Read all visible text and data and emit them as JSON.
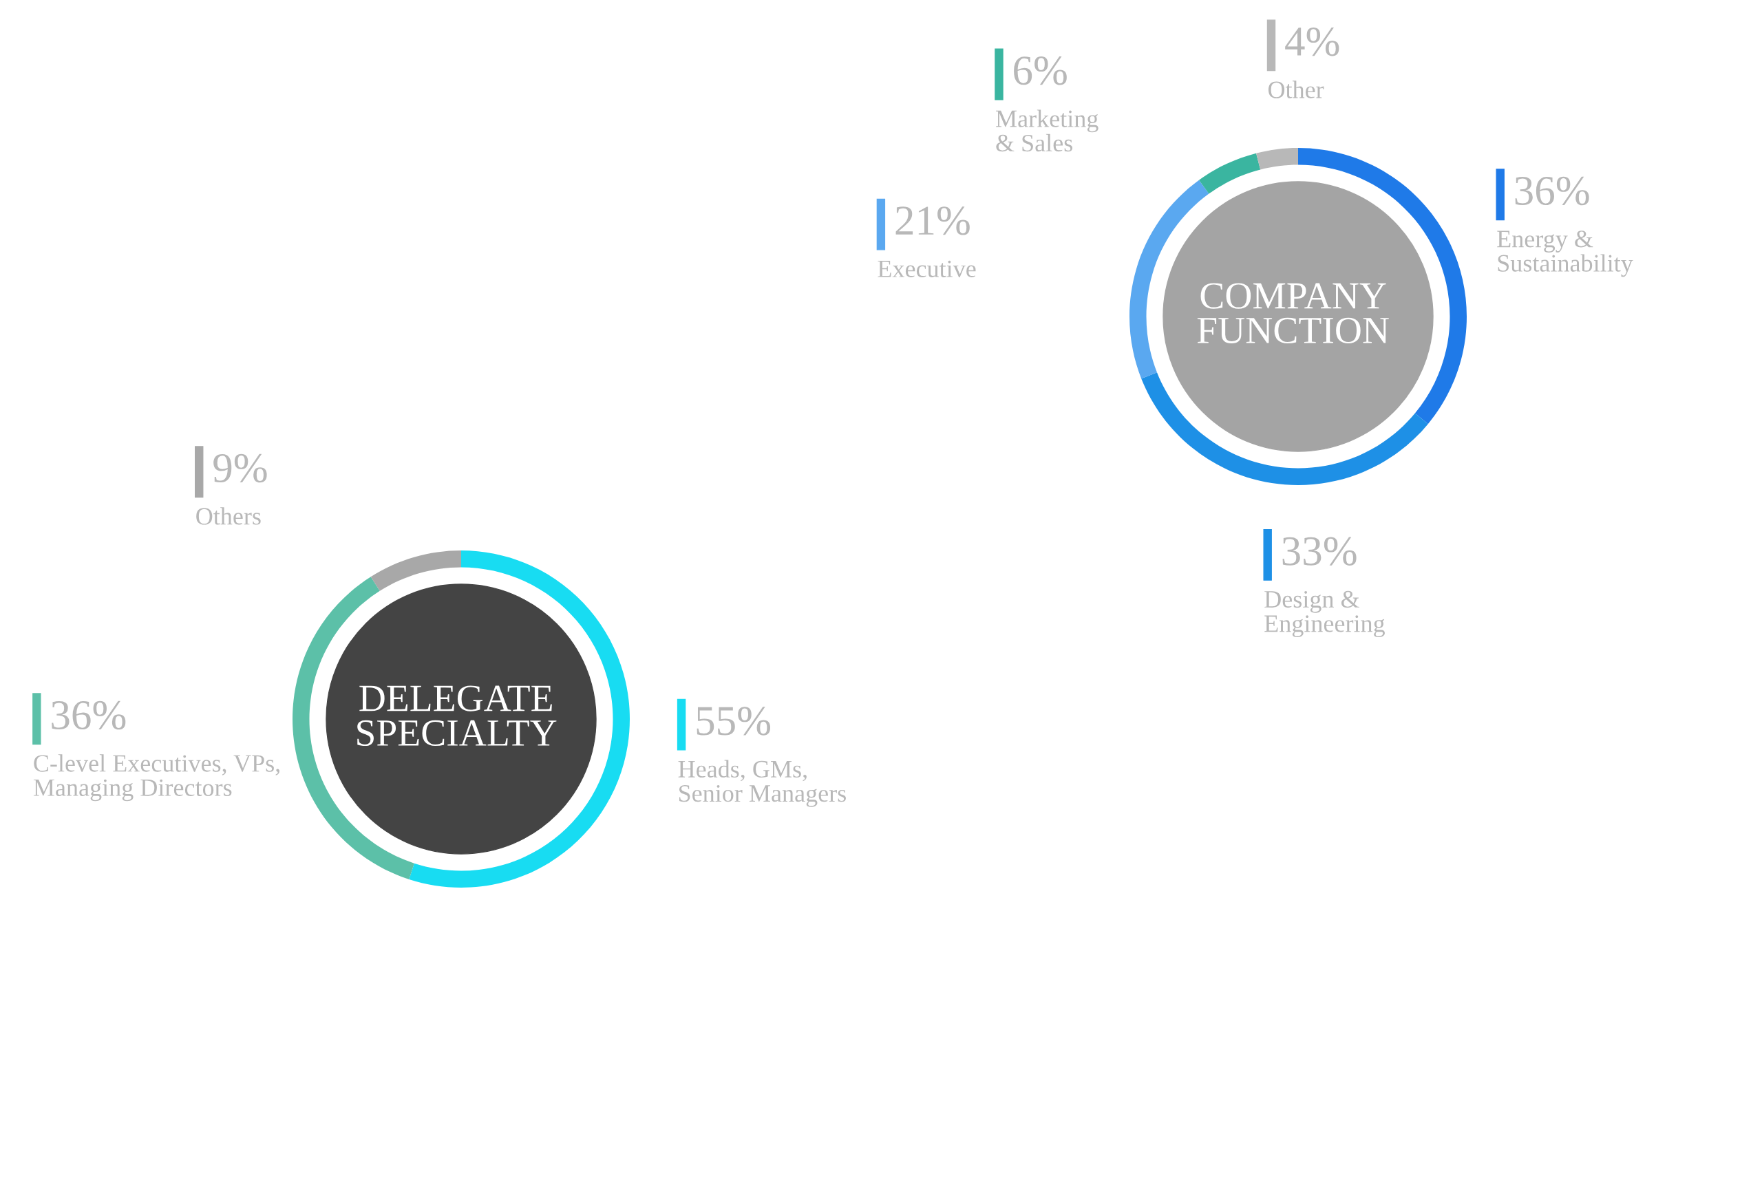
{
  "chart_data": [
    {
      "type": "donut",
      "title": "COMPANY\nFUNCTION",
      "categories": [
        "Energy &\nSustainability",
        "Design &\nEngineering",
        "Executive",
        "Marketing\n& Sales",
        "Other"
      ],
      "values": [
        36,
        33,
        21,
        6,
        4
      ],
      "value_labels": [
        "36%",
        "33%",
        "21%",
        "6%",
        "4%"
      ],
      "colors": [
        "#1f7ae8",
        "#1e90e6",
        "#5aa8f0",
        "#3ab5a0",
        "#b8b8b8"
      ],
      "legend": "bottom left"
    },
    {
      "type": "donut",
      "title": "DELEGATE\nSPECIALTY",
      "categories": [
        "Heads, GMs,\nSenior Managers",
        "C-level Executives, VPs,\nManaging Directors",
        "Others"
      ],
      "values": [
        55,
        36,
        9
      ],
      "value_labels": [
        "55%",
        "36%",
        "9%"
      ],
      "colors": [
        "#18dcf2",
        "#5cc0a8",
        "#a8a8a8"
      ],
      "legend": "top left"
    }
  ]
}
